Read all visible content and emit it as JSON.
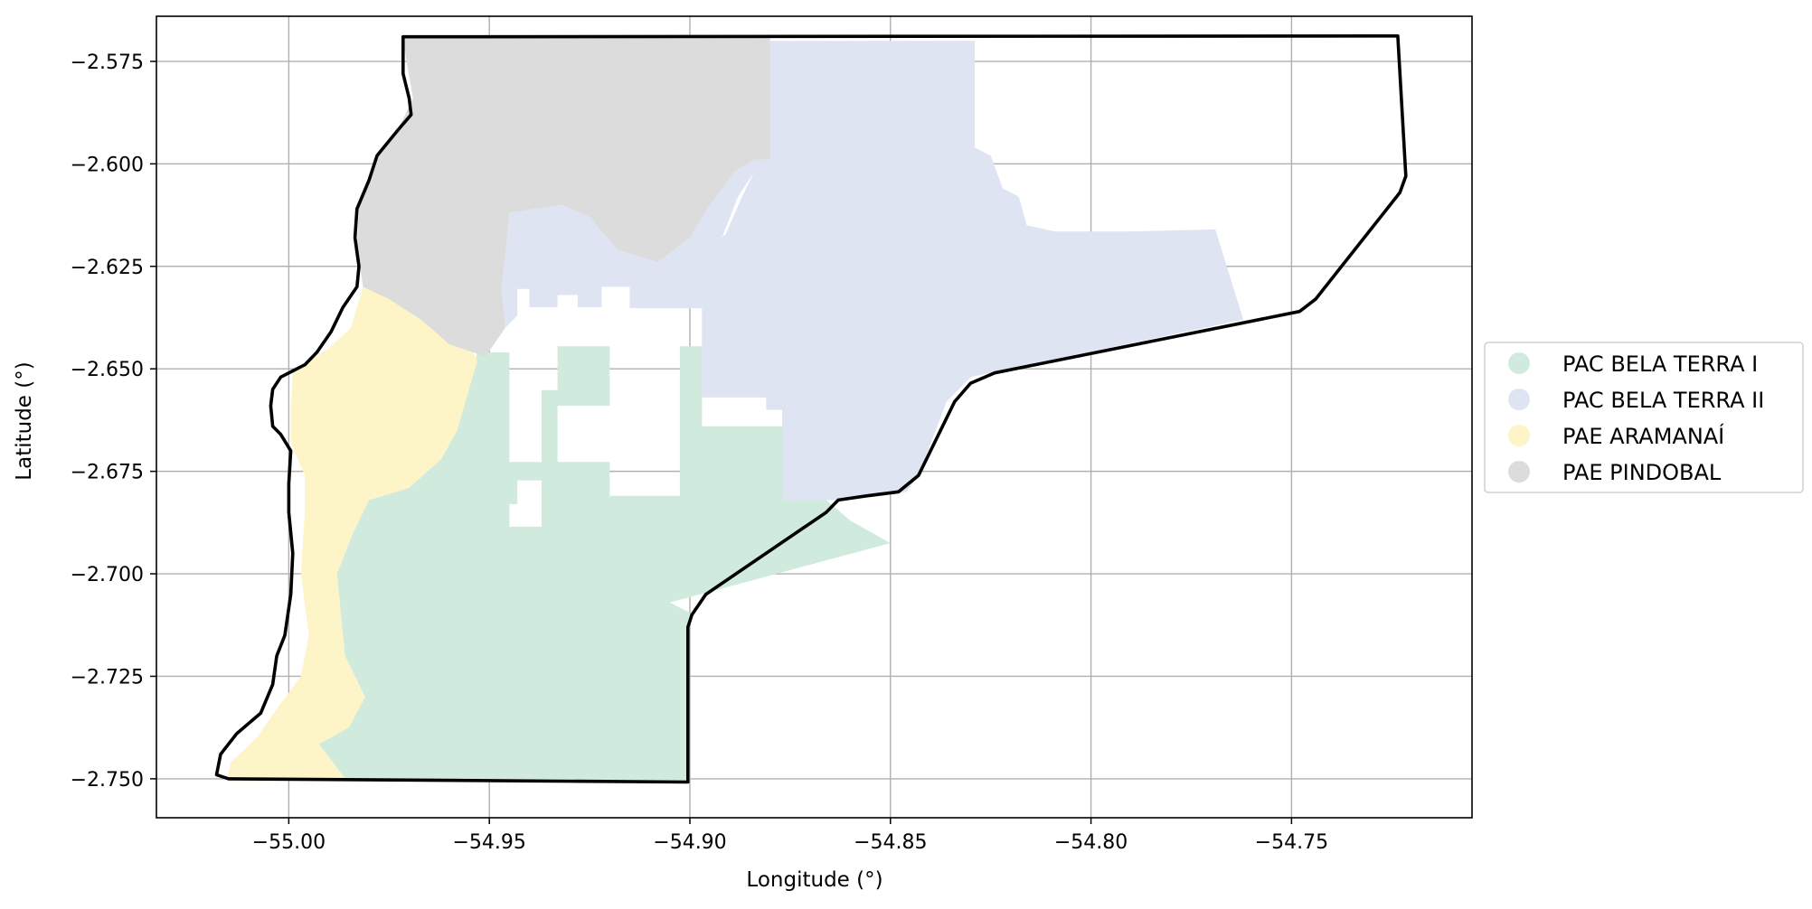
{
  "chart_data": {
    "type": "map",
    "xlabel": "Longitude (°)",
    "ylabel": "Latitude (°)",
    "xlim": [
      -55.033,
      -54.705
    ],
    "ylim": [
      -2.7595,
      -2.564
    ],
    "grid": true,
    "x_ticks": [
      {
        "value": -55.0,
        "label": "−55.00"
      },
      {
        "value": -54.95,
        "label": "−54.95"
      },
      {
        "value": -54.9,
        "label": "−54.90"
      },
      {
        "value": -54.85,
        "label": "−54.85"
      },
      {
        "value": -54.8,
        "label": "−54.80"
      },
      {
        "value": -54.75,
        "label": "−54.75"
      }
    ],
    "y_ticks": [
      {
        "value": -2.575,
        "label": "−2.575"
      },
      {
        "value": -2.6,
        "label": "−2.600"
      },
      {
        "value": -2.625,
        "label": "−2.625"
      },
      {
        "value": -2.65,
        "label": "−2.650"
      },
      {
        "value": -2.675,
        "label": "−2.675"
      },
      {
        "value": -2.7,
        "label": "−2.700"
      },
      {
        "value": -2.725,
        "label": "−2.725"
      },
      {
        "value": -2.75,
        "label": "−2.750"
      }
    ],
    "legend_position": "right-center",
    "series": [
      {
        "name": "PAC BELA TERRA I",
        "color": "#d0ebdd",
        "polygons": [
          [
            [
              -54.953,
              -2.646
            ],
            [
              -54.945,
              -2.646
            ],
            [
              -54.945,
              -2.6885
            ],
            [
              -54.937,
              -2.6885
            ],
            [
              -54.937,
              -2.6552
            ],
            [
              -54.933,
              -2.6552
            ],
            [
              -54.933,
              -2.6445
            ],
            [
              -54.92,
              -2.6445
            ],
            [
              -54.92,
              -2.659
            ],
            [
              -54.933,
              -2.659
            ],
            [
              -54.933,
              -2.6772
            ],
            [
              -54.943,
              -2.6772
            ],
            [
              -54.943,
              -2.683
            ],
            [
              -54.955,
              -2.683
            ],
            [
              -54.955,
              -2.6727
            ],
            [
              -54.92,
              -2.6727
            ],
            [
              -54.92,
              -2.681
            ],
            [
              -54.9025,
              -2.681
            ],
            [
              -54.9025,
              -2.6445
            ],
            [
              -54.897,
              -2.6445
            ],
            [
              -54.897,
              -2.664
            ],
            [
              -54.877,
              -2.664
            ],
            [
              -54.877,
              -2.681
            ],
            [
              -54.867,
              -2.681
            ],
            [
              -54.866,
              -2.682
            ],
            [
              -54.86,
              -2.687
            ],
            [
              -54.85,
              -2.6925
            ],
            [
              -54.905,
              -2.707
            ],
            [
              -54.9,
              -2.7095
            ],
            [
              -54.9,
              -2.7505
            ],
            [
              -54.9855,
              -2.7505
            ],
            [
              -54.9925,
              -2.7415
            ],
            [
              -54.985,
              -2.7375
            ],
            [
              -54.981,
              -2.73
            ],
            [
              -54.986,
              -2.72
            ],
            [
              -54.988,
              -2.7
            ],
            [
              -54.984,
              -2.69
            ],
            [
              -54.98,
              -2.682
            ],
            [
              -54.97,
              -2.679
            ],
            [
              -54.962,
              -2.672
            ],
            [
              -54.958,
              -2.665
            ]
          ]
        ]
      },
      {
        "name": "PAC BELA TERRA II",
        "color": "#dee4f1",
        "polygons": [
          [
            [
              -54.88,
              -2.569
            ],
            [
              -54.88,
              -2.6
            ],
            [
              -54.884,
              -2.602
            ],
            [
              -54.888,
              -2.608
            ],
            [
              -54.892,
              -2.618
            ],
            [
              -54.898,
              -2.624
            ],
            [
              -54.9025,
              -2.626
            ],
            [
              -54.9025,
              -2.6352
            ],
            [
              -54.915,
              -2.6352
            ],
            [
              -54.915,
              -2.63
            ],
            [
              -54.922,
              -2.63
            ],
            [
              -54.922,
              -2.635
            ],
            [
              -54.928,
              -2.635
            ],
            [
              -54.928,
              -2.632
            ],
            [
              -54.933,
              -2.632
            ],
            [
              -54.933,
              -2.635
            ],
            [
              -54.94,
              -2.635
            ],
            [
              -54.94,
              -2.6305
            ],
            [
              -54.943,
              -2.6305
            ],
            [
              -54.943,
              -2.637
            ],
            [
              -54.946,
              -2.64
            ],
            [
              -54.947,
              -2.63
            ],
            [
              -54.946,
              -2.622
            ],
            [
              -54.945,
              -2.612
            ],
            [
              -54.939,
              -2.611
            ],
            [
              -54.932,
              -2.61
            ],
            [
              -54.925,
              -2.613
            ],
            [
              -54.918,
              -2.621
            ],
            [
              -54.908,
              -2.624
            ],
            [
              -54.9,
              -2.618
            ],
            [
              -54.895,
              -2.61
            ],
            [
              -54.889,
              -2.602
            ],
            [
              -54.884,
              -2.599
            ],
            [
              -54.88,
              -2.599
            ]
          ],
          [
            [
              -54.88,
              -2.57
            ],
            [
              -54.829,
              -2.57
            ],
            [
              -54.829,
              -2.596
            ],
            [
              -54.825,
              -2.598
            ],
            [
              -54.822,
              -2.606
            ],
            [
              -54.818,
              -2.608
            ],
            [
              -54.816,
              -2.615
            ],
            [
              -54.809,
              -2.6165
            ],
            [
              -54.791,
              -2.6165
            ],
            [
              -54.769,
              -2.616
            ],
            [
              -54.762,
              -2.638
            ],
            [
              -54.83,
              -2.652
            ],
            [
              -54.836,
              -2.658
            ],
            [
              -54.843,
              -2.676
            ],
            [
              -54.846,
              -2.68
            ],
            [
              -54.852,
              -2.681
            ],
            [
              -54.862,
              -2.682
            ],
            [
              -54.867,
              -2.682
            ],
            [
              -54.877,
              -2.682
            ],
            [
              -54.877,
              -2.66
            ],
            [
              -54.881,
              -2.66
            ],
            [
              -54.881,
              -2.657
            ],
            [
              -54.897,
              -2.657
            ],
            [
              -54.897,
              -2.6352
            ],
            [
              -54.9025,
              -2.6352
            ],
            [
              -54.9025,
              -2.626
            ],
            [
              -54.897,
              -2.623
            ],
            [
              -54.891,
              -2.617
            ],
            [
              -54.887,
              -2.608
            ],
            [
              -54.884,
              -2.602
            ],
            [
              -54.88,
              -2.6
            ]
          ]
        ]
      },
      {
        "name": "PAE ARAMANAÍ",
        "color": "#fdf4c7",
        "polygons": [
          [
            [
              -54.9815,
              -2.63
            ],
            [
              -54.9845,
              -2.64
            ],
            [
              -54.99,
              -2.645
            ],
            [
              -54.999,
              -2.651
            ],
            [
              -54.9995,
              -2.66
            ],
            [
              -54.9995,
              -2.668
            ],
            [
              -54.996,
              -2.676
            ],
            [
              -54.996,
              -2.685
            ],
            [
              -54.997,
              -2.7
            ],
            [
              -54.995,
              -2.715
            ],
            [
              -54.997,
              -2.725
            ],
            [
              -55.003,
              -2.733
            ],
            [
              -55.008,
              -2.74
            ],
            [
              -55.0145,
              -2.746
            ],
            [
              -55.0155,
              -2.7505
            ],
            [
              -54.9855,
              -2.7505
            ],
            [
              -54.9925,
              -2.7415
            ],
            [
              -54.985,
              -2.7375
            ],
            [
              -54.981,
              -2.73
            ],
            [
              -54.986,
              -2.72
            ],
            [
              -54.988,
              -2.7
            ],
            [
              -54.984,
              -2.69
            ],
            [
              -54.98,
              -2.682
            ],
            [
              -54.97,
              -2.679
            ],
            [
              -54.962,
              -2.672
            ],
            [
              -54.958,
              -2.665
            ],
            [
              -54.953,
              -2.648
            ],
            [
              -54.955,
              -2.644
            ],
            [
              -54.962,
              -2.638
            ],
            [
              -54.97,
              -2.633
            ],
            [
              -54.978,
              -2.63
            ]
          ]
        ]
      },
      {
        "name": "PAE PINDOBAL",
        "color": "#dcdcdc",
        "polygons": [
          [
            [
              -54.9715,
              -2.569
            ],
            [
              -54.88,
              -2.569
            ],
            [
              -54.88,
              -2.599
            ],
            [
              -54.884,
              -2.599
            ],
            [
              -54.889,
              -2.602
            ],
            [
              -54.895,
              -2.61
            ],
            [
              -54.9,
              -2.618
            ],
            [
              -54.908,
              -2.624
            ],
            [
              -54.918,
              -2.621
            ],
            [
              -54.925,
              -2.613
            ],
            [
              -54.932,
              -2.61
            ],
            [
              -54.939,
              -2.611
            ],
            [
              -54.945,
              -2.612
            ],
            [
              -54.946,
              -2.622
            ],
            [
              -54.947,
              -2.63
            ],
            [
              -54.946,
              -2.64
            ],
            [
              -54.951,
              -2.647
            ],
            [
              -54.96,
              -2.644
            ],
            [
              -54.967,
              -2.638
            ],
            [
              -54.975,
              -2.633
            ],
            [
              -54.9815,
              -2.63
            ],
            [
              -54.983,
              -2.62
            ],
            [
              -54.9825,
              -2.61
            ],
            [
              -54.979,
              -2.6
            ],
            [
              -54.972,
              -2.59
            ],
            [
              -54.969,
              -2.584
            ],
            [
              -54.9705,
              -2.576
            ]
          ]
        ]
      }
    ],
    "outline": {
      "color": "#000000",
      "points": [
        [
          -54.9715,
          -2.569
        ],
        [
          -54.7235,
          -2.5688
        ],
        [
          -54.7215,
          -2.603
        ],
        [
          -54.723,
          -2.607
        ],
        [
          -54.744,
          -2.633
        ],
        [
          -54.748,
          -2.636
        ],
        [
          -54.824,
          -2.651
        ],
        [
          -54.83,
          -2.6535
        ],
        [
          -54.834,
          -2.658
        ],
        [
          -54.843,
          -2.676
        ],
        [
          -54.848,
          -2.68
        ],
        [
          -54.856,
          -2.681
        ],
        [
          -54.863,
          -2.682
        ],
        [
          -54.866,
          -2.685
        ],
        [
          -54.896,
          -2.705
        ],
        [
          -54.8995,
          -2.71
        ],
        [
          -54.9005,
          -2.713
        ],
        [
          -54.9005,
          -2.7508
        ],
        [
          -55.015,
          -2.75
        ],
        [
          -55.018,
          -2.749
        ],
        [
          -55.017,
          -2.744
        ],
        [
          -55.013,
          -2.739
        ],
        [
          -55.007,
          -2.734
        ],
        [
          -55.004,
          -2.727
        ],
        [
          -55.003,
          -2.72
        ],
        [
          -55.001,
          -2.715
        ],
        [
          -54.9995,
          -2.705
        ],
        [
          -54.999,
          -2.695
        ],
        [
          -55.0,
          -2.685
        ],
        [
          -55.0,
          -2.678
        ],
        [
          -54.9995,
          -2.67
        ],
        [
          -55.002,
          -2.666
        ],
        [
          -55.004,
          -2.664
        ],
        [
          -55.0045,
          -2.659
        ],
        [
          -55.004,
          -2.655
        ],
        [
          -55.002,
          -2.652
        ],
        [
          -54.999,
          -2.6505
        ],
        [
          -54.996,
          -2.649
        ],
        [
          -54.993,
          -2.646
        ],
        [
          -54.9895,
          -2.641
        ],
        [
          -54.9865,
          -2.635
        ],
        [
          -54.983,
          -2.63
        ],
        [
          -54.9825,
          -2.625
        ],
        [
          -54.9835,
          -2.618
        ],
        [
          -54.983,
          -2.611
        ],
        [
          -54.98,
          -2.604
        ],
        [
          -54.978,
          -2.598
        ],
        [
          -54.973,
          -2.592
        ],
        [
          -54.9695,
          -2.588
        ],
        [
          -54.97,
          -2.584
        ],
        [
          -54.9715,
          -2.578
        ],
        [
          -54.9715,
          -2.569
        ]
      ]
    }
  }
}
